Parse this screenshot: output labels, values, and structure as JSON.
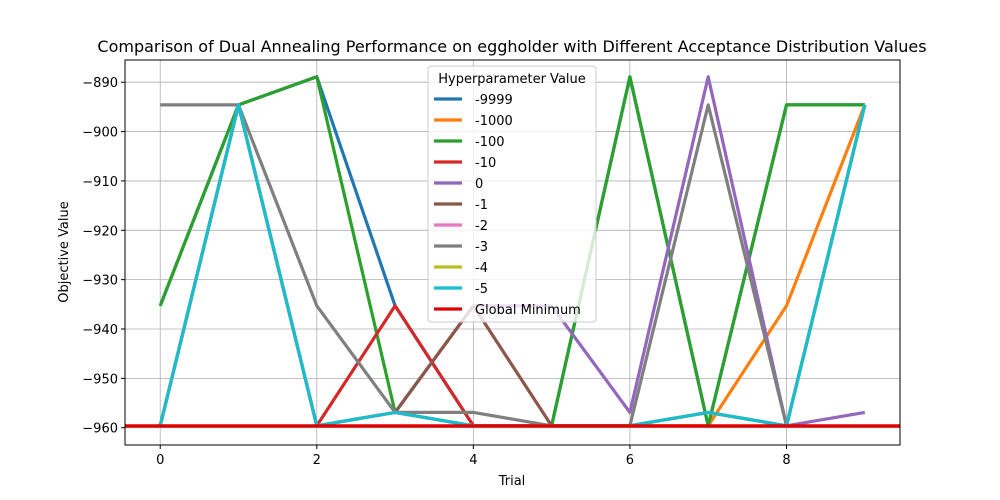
{
  "chart_data": {
    "type": "line",
    "title": "Comparison of Dual Annealing Performance on eggholder with Different Acceptance Distribution Values",
    "xlabel": "Trial",
    "ylabel": "Objective Value",
    "xlim": [
      -0.45,
      9.45
    ],
    "ylim": [
      -963.5,
      -885.5
    ],
    "xticks": [
      0,
      2,
      4,
      6,
      8
    ],
    "yticks": [
      -890,
      -900,
      -910,
      -920,
      -930,
      -940,
      -950,
      -960
    ],
    "grid": true,
    "legend_title": "Hyperparameter Value",
    "legend_position": "upper-center",
    "x": [
      0,
      1,
      2,
      3,
      4,
      5,
      6,
      7,
      8,
      9
    ],
    "series": [
      {
        "name": "-9999",
        "color": "#1f77b4",
        "values": [
          -935.3,
          -894.6,
          -888.9,
          -935.3,
          -959.6,
          -959.6,
          -888.9,
          -959.6,
          -894.6,
          -894.6
        ]
      },
      {
        "name": "-1000",
        "color": "#ff7f0e",
        "values": [
          -959.6,
          -894.6,
          -959.6,
          -956.9,
          -959.6,
          -959.6,
          -959.6,
          -959.6,
          -935.3,
          -894.6
        ]
      },
      {
        "name": "-100",
        "color": "#2ca02c",
        "values": [
          -935.3,
          -894.6,
          -888.9,
          -956.9,
          -959.6,
          -959.6,
          -888.9,
          -959.6,
          -894.6,
          -894.6
        ]
      },
      {
        "name": "-10",
        "color": "#d62728",
        "values": [
          -959.6,
          -894.6,
          -959.6,
          -935.3,
          -959.6,
          -959.6,
          -959.6,
          -956.9,
          -959.6,
          -894.6
        ]
      },
      {
        "name": "0",
        "color": "#9467bd",
        "values": [
          -959.6,
          -894.6,
          -959.6,
          -956.9,
          -935.3,
          -935.3,
          -956.9,
          -888.9,
          -959.6,
          -956.9
        ]
      },
      {
        "name": "-1",
        "color": "#8c564b",
        "values": [
          -959.6,
          -894.6,
          -959.6,
          -956.9,
          -935.3,
          -959.6,
          -959.6,
          -956.9,
          -959.6,
          -894.6
        ]
      },
      {
        "name": "-2",
        "color": "#e377c2",
        "values": [
          -959.6,
          -894.6,
          -959.6,
          -956.9,
          -959.6,
          -959.6,
          -959.6,
          -956.9,
          -959.6,
          -894.6
        ]
      },
      {
        "name": "-3",
        "color": "#7f7f7f",
        "values": [
          -894.6,
          -894.6,
          -935.3,
          -956.9,
          -956.9,
          -959.6,
          -959.6,
          -894.6,
          -959.6,
          -894.6
        ]
      },
      {
        "name": "-4",
        "color": "#bcbd22",
        "values": [
          -959.6,
          -894.6,
          -959.6,
          -956.9,
          -959.6,
          -959.6,
          -959.6,
          -956.9,
          -959.6,
          -894.6
        ]
      },
      {
        "name": "-5",
        "color": "#17becf",
        "values": [
          -959.6,
          -894.6,
          -959.6,
          -956.9,
          -959.6,
          -959.6,
          -959.6,
          -956.9,
          -959.6,
          -894.6
        ]
      }
    ],
    "reference_line": {
      "name": "Global Minimum",
      "color": "#e00000",
      "value": -959.64
    }
  }
}
